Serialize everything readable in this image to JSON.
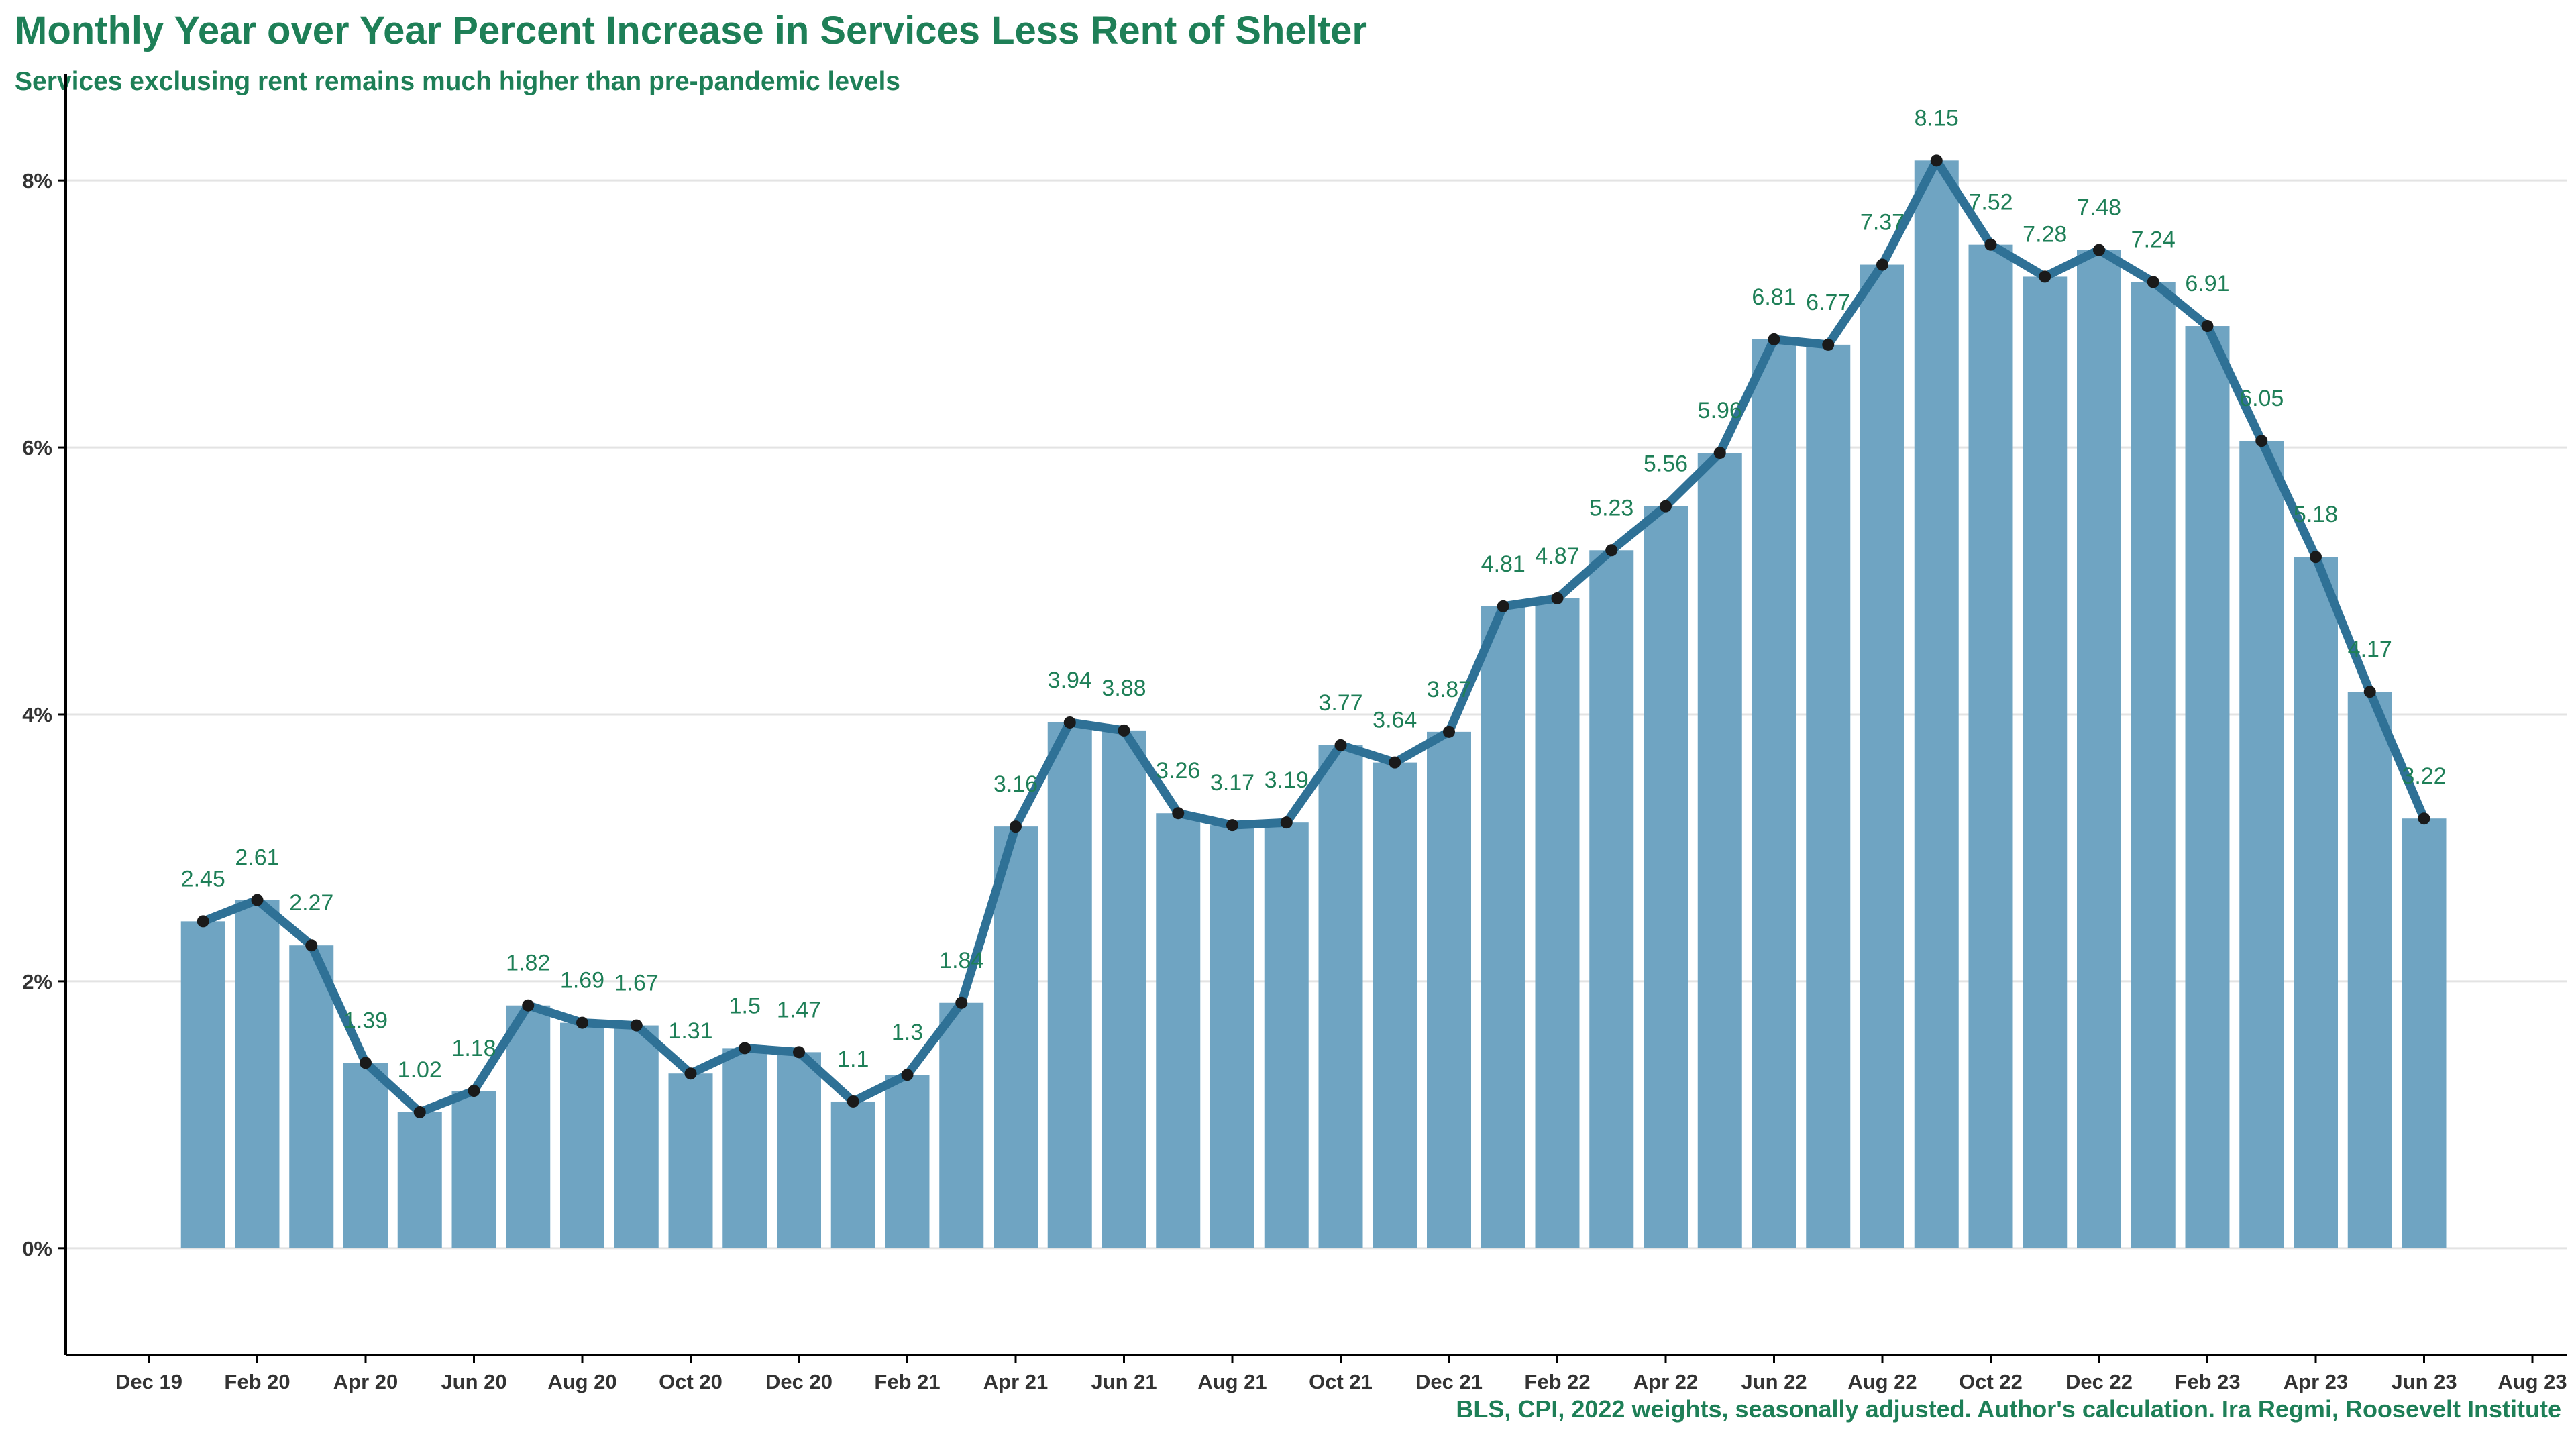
{
  "title": "Monthly Year over Year Percent Increase in Services Less Rent of Shelter",
  "subtitle": "Services exclusing rent remains much higher than pre-pandemic levels",
  "caption": "BLS, CPI, 2022 weights, seasonally adjusted. Author's calculation. Ira Regmi, Roosevelt Institute",
  "colors": {
    "bar": "#6fa4c2",
    "line": "#2f7196",
    "point": "#1a1a1a",
    "label": "#1e7f57",
    "grid": "#e3e3e3",
    "axis": "#000000"
  },
  "chart_data": {
    "type": "bar",
    "title": "Monthly Year over Year Percent Increase in Services Less Rent of Shelter",
    "subtitle": "Services exclusing rent remains much higher than pre-pandemic levels",
    "xlabel": "",
    "ylabel": "",
    "ylim": [
      -0.8,
      8.8
    ],
    "y_ticks": [
      0,
      2,
      4,
      6,
      8
    ],
    "y_tick_labels": [
      "0%",
      "2%",
      "4%",
      "6%",
      "8%"
    ],
    "x_ticks": [
      "Dec 19",
      "Feb 20",
      "Apr 20",
      "Jun 20",
      "Aug 20",
      "Oct 20",
      "Dec 20",
      "Feb 21",
      "Apr 21",
      "Jun 21",
      "Aug 21",
      "Oct 21",
      "Dec 21",
      "Feb 22",
      "Apr 22",
      "Jun 22",
      "Aug 22",
      "Oct 22",
      "Dec 22",
      "Feb 23",
      "Apr 23",
      "Jun 23",
      "Aug 23"
    ],
    "grid": true,
    "legend": "none",
    "categories": [
      "Jan 20",
      "Feb 20",
      "Mar 20",
      "Apr 20",
      "May 20",
      "Jun 20",
      "Jul 20",
      "Aug 20",
      "Sep 20",
      "Oct 20",
      "Nov 20",
      "Dec 20",
      "Jan 21",
      "Feb 21",
      "Mar 21",
      "Apr 21",
      "May 21",
      "Jun 21",
      "Jul 21",
      "Aug 21",
      "Sep 21",
      "Oct 21",
      "Nov 21",
      "Dec 21",
      "Jan 22",
      "Feb 22",
      "Mar 22",
      "Apr 22",
      "May 22",
      "Jun 22",
      "Jul 22",
      "Aug 22",
      "Sep 22",
      "Oct 22",
      "Nov 22",
      "Dec 22",
      "Jan 23",
      "Feb 23",
      "Mar 23",
      "Apr 23",
      "May 23",
      "Jun 23"
    ],
    "values": [
      2.45,
      2.61,
      2.27,
      1.39,
      1.02,
      1.18,
      1.82,
      1.69,
      1.67,
      1.31,
      1.5,
      1.47,
      1.1,
      1.3,
      1.84,
      3.16,
      3.94,
      3.88,
      3.26,
      3.17,
      3.19,
      3.77,
      3.64,
      3.87,
      4.81,
      4.87,
      5.23,
      5.56,
      5.96,
      6.81,
      6.77,
      7.37,
      8.15,
      7.52,
      7.28,
      7.48,
      7.24,
      6.91,
      6.05,
      5.18,
      4.17,
      3.22
    ],
    "data_labels": [
      "2.45",
      "2.61",
      "2.27",
      "1.39",
      "1.02",
      "1.18",
      "1.82",
      "1.69",
      "1.67",
      "1.31",
      "1.5",
      "1.47",
      "1.1",
      "1.3",
      "1.84",
      "3.16",
      "3.94",
      "3.88",
      "3.26",
      "3.17",
      "3.19",
      "3.77",
      "3.64",
      "3.87",
      "4.81",
      "4.87",
      "5.23",
      "5.56",
      "5.96",
      "6.81",
      "6.77",
      "7.37",
      "8.15",
      "7.52",
      "7.28",
      "7.48",
      "7.24",
      "6.91",
      "6.05",
      "5.18",
      "4.17",
      "3.22"
    ]
  }
}
